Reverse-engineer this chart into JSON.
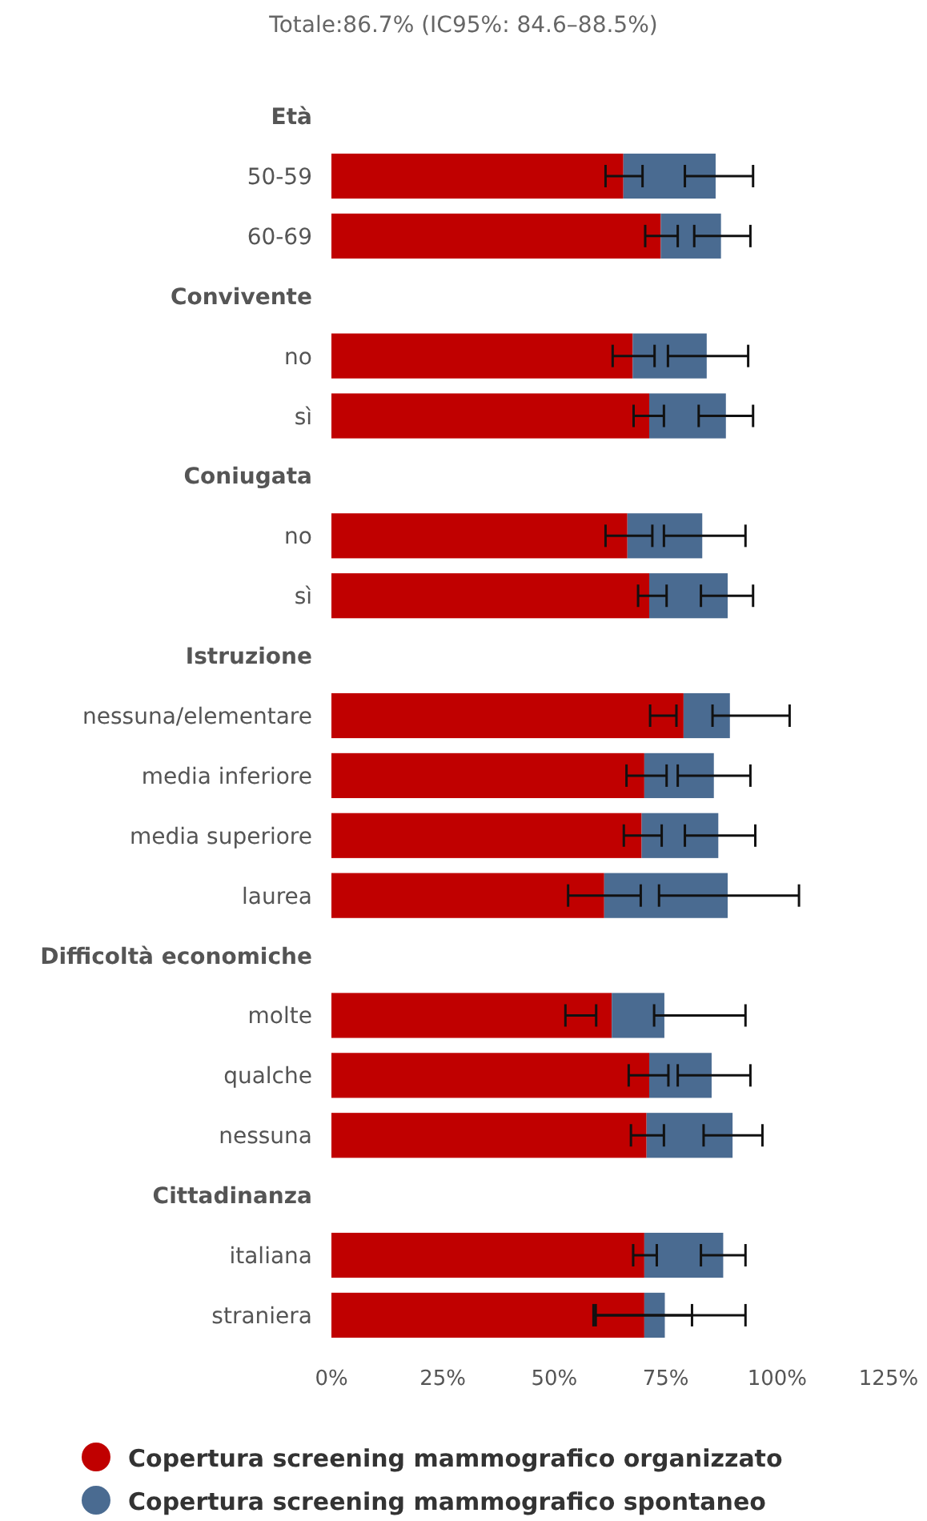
{
  "chart_data": {
    "type": "bar",
    "orientation": "horizontal",
    "stacked": true,
    "title": "Totale:86.7% (IC95%: 84.6–88.5%)",
    "categories": [
      "Età",
      "50-59",
      "60-69",
      "Convivente",
      "no",
      "sì",
      "Coniugata",
      "no",
      "sì",
      "Istruzione",
      "nessuna/elementare",
      "media inferiore",
      "media superiore",
      "laurea",
      "Difficoltà economiche",
      "molte",
      "qualche",
      "nessuna",
      "Cittadinanza",
      "italiana",
      "straniera"
    ],
    "series": [
      {
        "name": "Copertura screening mammografico organizzato",
        "color": "#c00000",
        "values": [
          null,
          65.5,
          73.9,
          null,
          67.6,
          71.3,
          null,
          66.4,
          71.3,
          null,
          79.0,
          70.2,
          69.6,
          61.2,
          null,
          62.9,
          71.3,
          70.7,
          null,
          70.2,
          70.2
        ],
        "errors": [
          null,
          [
            61.5,
            69.8
          ],
          [
            70.4,
            77.7
          ],
          null,
          [
            63.1,
            72.5
          ],
          [
            67.8,
            74.6
          ],
          null,
          [
            61.5,
            72.0
          ],
          [
            68.8,
            75.2
          ],
          null,
          [
            71.5,
            77.4
          ],
          [
            66.2,
            75.2
          ],
          [
            65.6,
            74.1
          ],
          [
            53.1,
            69.4
          ],
          null,
          [
            52.5,
            59.4
          ],
          [
            66.7,
            75.6
          ],
          [
            67.2,
            74.6
          ],
          null,
          [
            67.7,
            73.0
          ],
          [
            59.3,
            80.9
          ]
        ]
      },
      {
        "name": "Copertura screening mammografico spontaneo",
        "color": "#4a6b91",
        "values": [
          null,
          20.7,
          13.5,
          null,
          16.6,
          17.2,
          null,
          16.8,
          17.6,
          null,
          10.4,
          15.6,
          17.2,
          27.7,
          null,
          11.8,
          14.0,
          19.3,
          null,
          17.7,
          4.6
        ],
        "errors": [
          null,
          [
            79.3,
            94.6
          ],
          [
            81.4,
            94.0
          ],
          null,
          [
            75.5,
            93.5
          ],
          [
            82.4,
            94.6
          ],
          null,
          [
            74.6,
            92.9
          ],
          [
            82.9,
            94.6
          ],
          null,
          [
            85.5,
            102.8
          ],
          [
            77.7,
            94.0
          ],
          [
            79.3,
            95.1
          ],
          [
            73.5,
            104.9
          ],
          null,
          [
            72.4,
            92.9
          ],
          [
            77.7,
            94.0
          ],
          [
            83.5,
            96.7
          ],
          null,
          [
            82.9,
            92.9
          ],
          [
            58.8,
            92.9
          ]
        ]
      }
    ],
    "xlim": [
      0,
      125
    ],
    "xticks": [
      {
        "value": 0,
        "label": "0%"
      },
      {
        "value": 25,
        "label": "25%"
      },
      {
        "value": 50,
        "label": "50%"
      },
      {
        "value": 75,
        "label": "75%"
      },
      {
        "value": 100,
        "label": "100%"
      },
      {
        "value": 125,
        "label": "125%"
      }
    ],
    "grid": false,
    "legend": "bottom"
  }
}
